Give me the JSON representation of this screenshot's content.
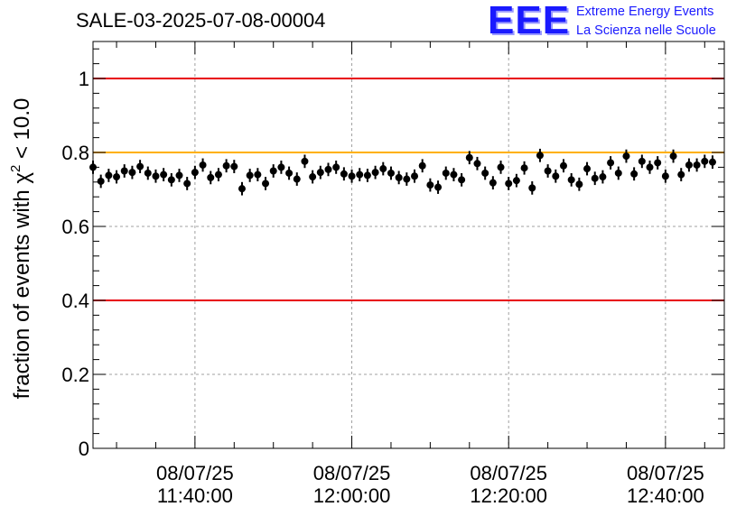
{
  "chart_data": {
    "type": "scatter",
    "title": "SALE-03-2025-07-08-00004",
    "ylabel": "fraction of events with χ² < 10.0",
    "ylabel_main": "fraction of events with χ",
    "ylabel_sup": "2",
    "ylabel_tail": " < 10.0",
    "xlabel": "",
    "ylim": [
      0,
      1.1
    ],
    "xlim": [
      "2025-07-08 11:27:00",
      "2025-07-08 12:47:30"
    ],
    "yticks": [
      "0",
      "0.2",
      "0.4",
      "0.6",
      "0.8",
      "1"
    ],
    "ytick_values": [
      0,
      0.2,
      0.4,
      0.6,
      0.8,
      1.0
    ],
    "xticks": [
      {
        "time": "2025-07-08 11:40:00",
        "date": "08/07/25",
        "clock": "11:40:00"
      },
      {
        "time": "2025-07-08 12:00:00",
        "date": "08/07/25",
        "clock": "12:00:00"
      },
      {
        "time": "2025-07-08 12:20:00",
        "date": "08/07/25",
        "clock": "12:20:00"
      },
      {
        "time": "2025-07-08 12:40:00",
        "date": "08/07/25",
        "clock": "12:40:00"
      }
    ],
    "grid": true,
    "reference_lines": [
      {
        "y": 1.0,
        "color": "#e8000b"
      },
      {
        "y": 0.8,
        "color": "#ffb000"
      },
      {
        "y": 0.4,
        "color": "#e8000b"
      }
    ],
    "series": [
      {
        "color": "#000000",
        "error": 0.018,
        "x_start": "2025-07-08 11:27:00",
        "x_step_seconds": 60,
        "values": [
          0.76,
          0.722,
          0.738,
          0.734,
          0.75,
          0.746,
          0.762,
          0.744,
          0.736,
          0.74,
          0.726,
          0.738,
          0.716,
          0.746,
          0.766,
          0.732,
          0.74,
          0.764,
          0.762,
          0.702,
          0.738,
          0.74,
          0.716,
          0.75,
          0.76,
          0.744,
          0.728,
          0.776,
          0.734,
          0.746,
          0.754,
          0.76,
          0.742,
          0.736,
          0.74,
          0.738,
          0.746,
          0.756,
          0.744,
          0.732,
          0.728,
          0.736,
          0.764,
          0.712,
          0.706,
          0.744,
          0.74,
          0.726,
          0.786,
          0.77,
          0.744,
          0.718,
          0.76,
          0.716,
          0.724,
          0.758,
          0.704,
          0.792,
          0.75,
          0.736,
          0.764,
          0.726,
          0.714,
          0.756,
          0.73,
          0.734,
          0.772,
          0.744,
          0.79,
          0.742,
          0.776,
          0.76,
          0.772,
          0.736,
          0.79,
          0.74,
          0.766,
          0.766,
          0.776,
          0.774
        ]
      }
    ]
  },
  "logo": {
    "mark": "EEE",
    "line1": "Extreme Energy Events",
    "line2": "La Scienza nelle Scuole"
  }
}
